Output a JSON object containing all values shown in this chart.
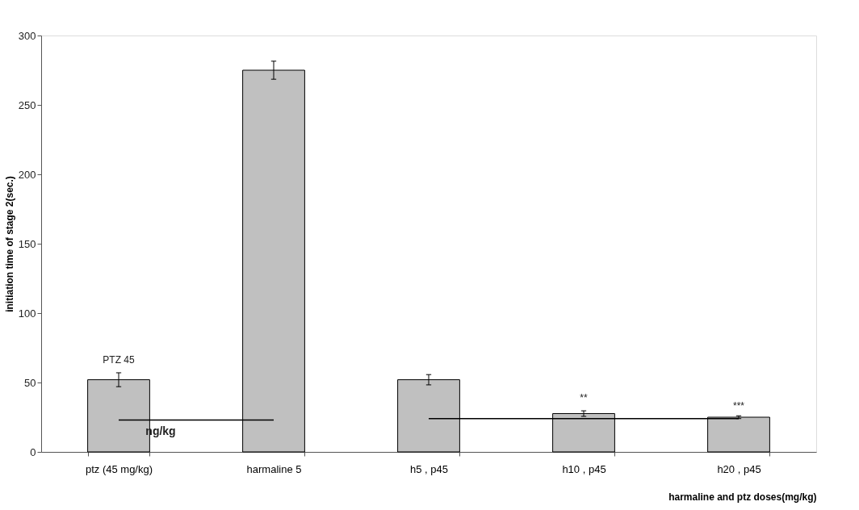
{
  "chart_data": {
    "type": "bar",
    "ylabel": "initiation time of stage 2(sec.)",
    "xlabel": "harmaline and ptz doses(mg/kg)",
    "categories": [
      "ptz (45 mg/kg)",
      "harmaline 5",
      "h5 , p45",
      "h10 , p45",
      "h20 , p45"
    ],
    "series": [
      {
        "color": "#c0c0c0",
        "values": [
          52,
          275,
          52,
          27.6,
          25
        ],
        "errors": [
          5,
          6.5,
          3.7,
          2,
          1
        ]
      },
      {
        "type": "line",
        "color": "#000000",
        "values": [
          23,
          23,
          null,
          null,
          null
        ]
      },
      {
        "type": "line",
        "color": "#000000",
        "values": [
          null,
          null,
          24,
          24,
          24
        ]
      }
    ],
    "ylim": [
      0,
      300
    ],
    "yticks": [
      0,
      50,
      100,
      150,
      200,
      250,
      300
    ],
    "grid": false,
    "marker": "none",
    "line_style": "solid",
    "annotations": [
      "PTZ  45",
      "ng/kg",
      "**",
      "***"
    ]
  }
}
